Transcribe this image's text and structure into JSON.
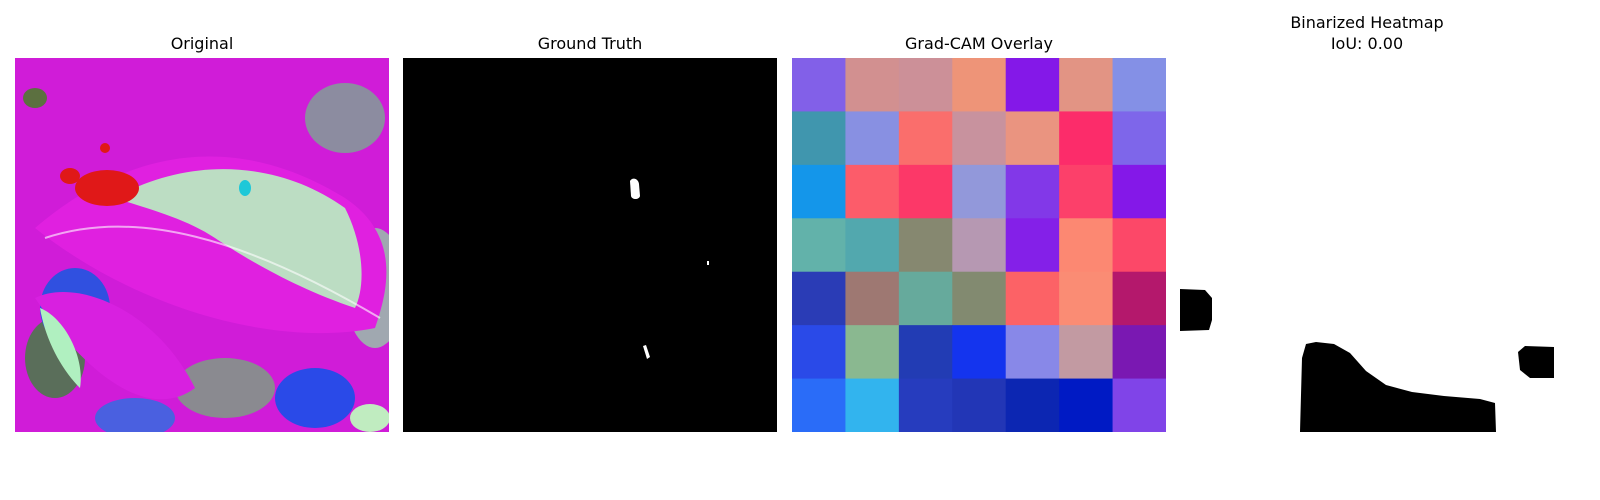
{
  "panels": [
    {
      "title": "Original"
    },
    {
      "title": "Ground Truth"
    },
    {
      "title": "Grad-CAM Overlay"
    },
    {
      "title": "Binarized Heatmap",
      "subtitle": "IoU: 0.00"
    }
  ],
  "gradcam_grid": [
    [
      "#8260e8",
      "#d29090",
      "#cc9098",
      "#ee9478",
      "#8418e8",
      "#e29484",
      "#8490e6"
    ],
    [
      "#4096ae",
      "#8890e2",
      "#fa6e6c",
      "#c8929e",
      "#ea9480",
      "#fc2c6a",
      "#7e66ea"
    ],
    [
      "#1496ea",
      "#fc5c6a",
      "#fc3868",
      "#9298da",
      "#8238e8",
      "#fc406a",
      "#8418e8"
    ],
    [
      "#62b2aa",
      "#52a8ae",
      "#868870",
      "#b698b2",
      "#8420e8",
      "#fc8872",
      "#fc4868"
    ],
    [
      "#2a3cb6",
      "#9e7872",
      "#66aa9c",
      "#828a70",
      "#fc6266",
      "#fa8c74",
      "#b4186c"
    ],
    [
      "#2a4ae8",
      "#8ab890",
      "#223cb4",
      "#1434ee",
      "#8888e8",
      "#c29aa2",
      "#7a18b2"
    ],
    [
      "#2a6cf8",
      "#32b4ee",
      "#263cbe",
      "#2236b6",
      "#0c26b2",
      "#001ac4",
      "#8044e8"
    ]
  ]
}
